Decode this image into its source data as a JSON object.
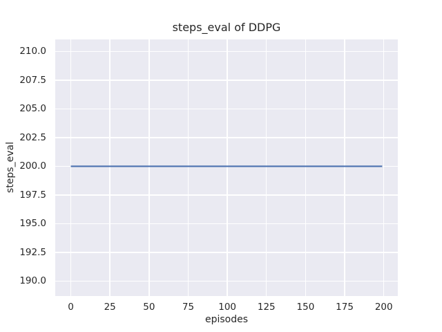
{
  "chart_data": {
    "type": "line",
    "title": "steps_eval of DDPG",
    "xlabel": "episodes",
    "ylabel": "steps_eval",
    "xlim": [
      -9.95,
      208.95
    ],
    "ylim": [
      188.7,
      211.05
    ],
    "x_ticks": [
      0,
      25,
      50,
      75,
      100,
      125,
      150,
      175,
      200
    ],
    "x_tick_labels": [
      "0",
      "25",
      "50",
      "75",
      "100",
      "125",
      "150",
      "175",
      "200"
    ],
    "y_ticks": [
      190.0,
      192.5,
      195.0,
      197.5,
      200.0,
      202.5,
      205.0,
      207.5,
      210.0
    ],
    "y_tick_labels": [
      "190.0",
      "192.5",
      "195.0",
      "197.5",
      "200.0",
      "202.5",
      "205.0",
      "207.5",
      "210.0"
    ],
    "grid": true,
    "legend": null,
    "series": [
      {
        "name": "DDPG steps_eval",
        "color": "#4c72b0",
        "x": [
          0,
          199
        ],
        "y": [
          200,
          200
        ],
        "note": "constant value 200 for all 200 evaluation episodes"
      }
    ],
    "colors": {
      "plot_background": "#eaeaf2",
      "grid": "#ffffff",
      "text": "#262626",
      "figure_background": "#ffffff"
    }
  }
}
